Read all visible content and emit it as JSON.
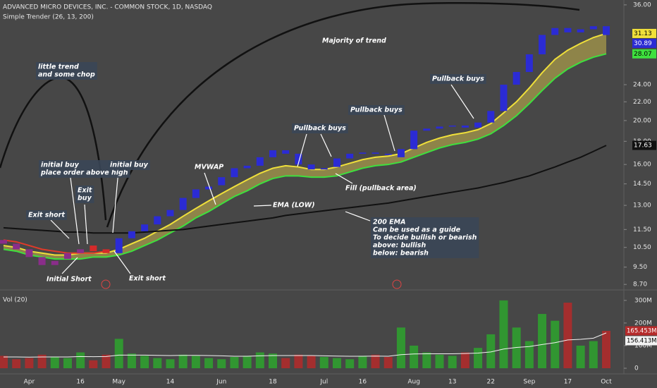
{
  "chart_data": [
    {
      "type": "candlestick",
      "title": "ADVANCED MICRO DEVICES, INC. - COMMON STOCK, 1D, NASDAQ",
      "subtitle": "Simple Trender (26, 13, 200)",
      "categories": [
        null,
        null,
        "Apr",
        null,
        null,
        null,
        "16",
        null,
        null,
        "May",
        null,
        null,
        null,
        "14",
        null,
        null,
        null,
        "Jun",
        null,
        null,
        null,
        "18",
        null,
        null,
        null,
        "Jul",
        null,
        null,
        "16",
        null,
        null,
        null,
        "Aug",
        null,
        null,
        "13",
        null,
        null,
        "22",
        null,
        null,
        "Sep",
        null,
        null,
        "17",
        null,
        null,
        "Oct"
      ],
      "open": [
        10.9,
        10.7,
        10.4,
        10.0,
        9.6,
        9.9,
        10.2,
        10.6,
        10.4,
        10.2,
        11.0,
        11.4,
        11.8,
        12.3,
        12.7,
        13.5,
        14.1,
        14.4,
        15.0,
        15.7,
        15.9,
        16.6,
        17.2,
        16.9,
        16.0,
        15.6,
        15.8,
        16.5,
        16.9,
        17.0,
        16.9,
        16.6,
        17.3,
        19.0,
        19.2,
        19.4,
        19.5,
        19.3,
        19.8,
        21.0,
        24.0,
        25.6,
        28.0,
        30.9,
        32.0,
        31.3,
        31.8,
        32.3
      ],
      "close": [
        10.7,
        10.4,
        10.0,
        9.6,
        9.8,
        10.2,
        10.4,
        10.3,
        10.2,
        11.0,
        11.4,
        11.8,
        12.3,
        12.7,
        13.5,
        14.1,
        14.3,
        15.0,
        15.7,
        15.9,
        16.6,
        17.2,
        16.9,
        16.0,
        15.6,
        15.7,
        16.5,
        16.9,
        17.0,
        16.9,
        16.8,
        17.3,
        19.0,
        19.2,
        19.4,
        19.5,
        19.3,
        19.8,
        21.0,
        24.0,
        25.6,
        28.0,
        30.9,
        32.0,
        31.3,
        31.8,
        32.3,
        30.89
      ],
      "colors": [
        "#8a2d8a",
        "#8a2d8a",
        "#8a2d8a",
        "#8a2d8a",
        "#8a2d8a",
        "#8a2d8a",
        "#8a2d8a",
        "#d42a2a",
        "#d42a2a",
        "#2b2bd4",
        "#2b2bd4",
        "#2b2bd4",
        "#2b2bd4",
        "#2b2bd4",
        "#2b2bd4",
        "#2b2bd4",
        "#2b2bd4",
        "#2b2bd4",
        "#2b2bd4",
        "#2b2bd4",
        "#2b2bd4",
        "#2b2bd4",
        "#2b2bd4",
        "#2b2bd4",
        "#2b2bd4",
        "#2b2bd4",
        "#2b2bd4",
        "#2b2bd4",
        "#2b2bd4",
        "#2b2bd4",
        "#2b2bd4",
        "#2b2bd4",
        "#2b2bd4",
        "#2b2bd4",
        "#2b2bd4",
        "#2b2bd4",
        "#2b2bd4",
        "#2b2bd4",
        "#2b2bd4",
        "#2b2bd4",
        "#2b2bd4",
        "#2b2bd4",
        "#2b2bd4",
        "#2b2bd4",
        "#2b2bd4",
        "#2b2bd4",
        "#2b2bd4",
        "#2b2bd4"
      ],
      "close_label_color": "#2b2bd4",
      "series": [
        {
          "color": "#f0e03a",
          "values": [
            10.6,
            10.5,
            10.3,
            10.2,
            10.1,
            10.1,
            10.2,
            10.2,
            10.2,
            10.4,
            10.7,
            11.0,
            11.4,
            11.8,
            12.3,
            12.8,
            13.3,
            13.8,
            14.3,
            14.8,
            15.3,
            15.7,
            15.9,
            15.8,
            15.6,
            15.6,
            15.8,
            16.1,
            16.4,
            16.6,
            16.7,
            16.9,
            17.4,
            17.9,
            18.3,
            18.6,
            18.8,
            19.1,
            19.7,
            20.8,
            22.0,
            23.6,
            25.5,
            27.3,
            28.6,
            29.6,
            30.5,
            31.13
          ]
        },
        {
          "color": "#3ee03e",
          "values": [
            10.4,
            10.3,
            10.1,
            10.0,
            9.9,
            9.9,
            9.9,
            10.0,
            10.0,
            10.1,
            10.3,
            10.6,
            10.9,
            11.3,
            11.7,
            12.2,
            12.6,
            13.1,
            13.6,
            14.0,
            14.5,
            14.9,
            15.1,
            15.1,
            15.0,
            15.0,
            15.1,
            15.4,
            15.7,
            15.9,
            16.0,
            16.2,
            16.6,
            17.0,
            17.4,
            17.7,
            17.9,
            18.2,
            18.7,
            19.5,
            20.5,
            21.8,
            23.3,
            24.8,
            26.0,
            26.9,
            27.6,
            28.07
          ]
        },
        {
          "color": "#111111",
          "values": [
            11.6,
            11.55,
            11.5,
            11.45,
            11.4,
            11.35,
            11.35,
            11.3,
            11.3,
            11.3,
            11.3,
            11.35,
            11.4,
            11.45,
            11.5,
            11.6,
            11.7,
            11.8,
            11.9,
            12.0,
            12.1,
            12.2,
            12.35,
            12.45,
            12.55,
            12.65,
            12.75,
            12.85,
            12.95,
            13.05,
            13.15,
            13.3,
            13.45,
            13.6,
            13.75,
            13.9,
            14.05,
            14.2,
            14.4,
            14.6,
            14.85,
            15.1,
            15.45,
            15.8,
            16.2,
            16.6,
            17.1,
            17.63
          ]
        },
        {
          "color": "#e03a2a",
          "values": [
            10.9,
            10.8,
            10.6,
            10.4,
            10.3,
            10.2,
            10.2,
            10.2,
            10.3,
            null,
            null,
            null,
            null,
            null,
            null,
            null,
            null,
            null,
            null,
            null,
            null,
            null,
            null,
            null,
            null,
            null,
            null,
            null,
            null,
            null,
            null,
            null,
            null,
            null,
            null,
            null,
            null,
            null,
            null,
            null,
            null,
            null,
            null,
            null,
            null,
            null,
            null,
            null
          ]
        }
      ],
      "fill_color": "#c9b64a",
      "log_scale": true,
      "grid": false,
      "ylim": [
        8.49,
        36.9
      ],
      "yticks": [
        {
          "value": 8.7,
          "label": "8.70"
        },
        {
          "value": 9.5,
          "label": "9.50"
        },
        {
          "value": 10.5,
          "label": "10.50"
        },
        {
          "value": 11.5,
          "label": "11.50"
        },
        {
          "value": 13,
          "label": "13.00"
        },
        {
          "value": 14.5,
          "label": "14.50"
        },
        {
          "value": 16,
          "label": "16.00"
        },
        {
          "value": 18,
          "label": "18.00"
        },
        {
          "value": 20,
          "label": "20.00"
        },
        {
          "value": 22,
          "label": "22.00"
        },
        {
          "value": 24,
          "label": "24.00"
        },
        {
          "value": 36,
          "label": "36.00"
        }
      ],
      "annotations": [
        {
          "lines": [
            "little trend",
            "and some chop"
          ]
        },
        {
          "lines": [
            "initial buy",
            "place order above high"
          ]
        },
        {
          "lines": [
            "Exit",
            "buy"
          ]
        },
        {
          "lines": [
            "Exit short"
          ]
        },
        {
          "lines": [
            "initial buy"
          ]
        },
        {
          "lines": [
            "Initial Short"
          ]
        },
        {
          "lines": [
            "Exit short"
          ]
        },
        {
          "lines": [
            "MVWAP"
          ]
        },
        {
          "lines": [
            "Pullback buys"
          ]
        },
        {
          "lines": [
            "Pullback buys"
          ]
        },
        {
          "lines": [
            "Pullback buys"
          ]
        },
        {
          "lines": [
            "Fill (pullback area)"
          ]
        },
        {
          "lines": [
            "EMA (LOW)"
          ]
        },
        {
          "lines": [
            "Majority of trend"
          ]
        },
        {
          "lines": [
            "200 EMA",
            "Can be used as a guide",
            "To decide bullish or bearish",
            "above: bullish",
            "below: bearish"
          ]
        }
      ]
    },
    {
      "type": "bar",
      "title": "Vol (20)",
      "up_color": "#2ea52e",
      "down_color": "#b52a2a",
      "values": [
        55,
        40,
        45,
        60,
        50,
        45,
        70,
        35,
        60,
        130,
        65,
        55,
        45,
        40,
        60,
        55,
        45,
        40,
        50,
        55,
        70,
        65,
        45,
        60,
        55,
        50,
        45,
        40,
        55,
        60,
        50,
        180,
        100,
        70,
        60,
        55,
        70,
        90,
        150,
        300,
        180,
        120,
        240,
        210,
        290,
        100,
        120,
        165.453
      ],
      "value_labels": [
        null,
        null,
        null,
        null,
        null,
        null,
        null,
        null,
        null,
        null,
        null,
        null,
        null,
        null,
        null,
        null,
        null,
        null,
        null,
        null,
        null,
        null,
        null,
        null,
        null,
        null,
        null,
        null,
        null,
        null,
        null,
        null,
        null,
        null,
        null,
        null,
        null,
        null,
        null,
        null,
        null,
        null,
        null,
        null,
        null,
        null,
        null,
        "165.453M"
      ],
      "series": [
        {
          "color": "#f2f2f2",
          "values": [
            50,
            50,
            49,
            50,
            50,
            50,
            52,
            51,
            52,
            58,
            58,
            58,
            57,
            56,
            57,
            57,
            56,
            55,
            53,
            53,
            55,
            56,
            56,
            56,
            56,
            55,
            54,
            53,
            53,
            54,
            53,
            60,
            63,
            64,
            64,
            64,
            65,
            67,
            72,
            85,
            92,
            96,
            105,
            113,
            125,
            128,
            133,
            156.413
          ],
          "value_labels": [
            null,
            null,
            null,
            null,
            null,
            null,
            null,
            null,
            null,
            null,
            null,
            null,
            null,
            null,
            null,
            null,
            null,
            null,
            null,
            null,
            null,
            null,
            null,
            null,
            null,
            null,
            null,
            null,
            null,
            null,
            null,
            null,
            null,
            null,
            null,
            null,
            null,
            null,
            null,
            null,
            null,
            null,
            null,
            null,
            null,
            null,
            null,
            "156.413M"
          ]
        }
      ],
      "ylim": [
        0,
        340
      ],
      "yticks": [
        0,
        {
          "value": 100,
          "label": "100M"
        },
        {
          "value": 200,
          "label": "200M"
        },
        {
          "value": 300,
          "label": "300M"
        }
      ]
    }
  ]
}
